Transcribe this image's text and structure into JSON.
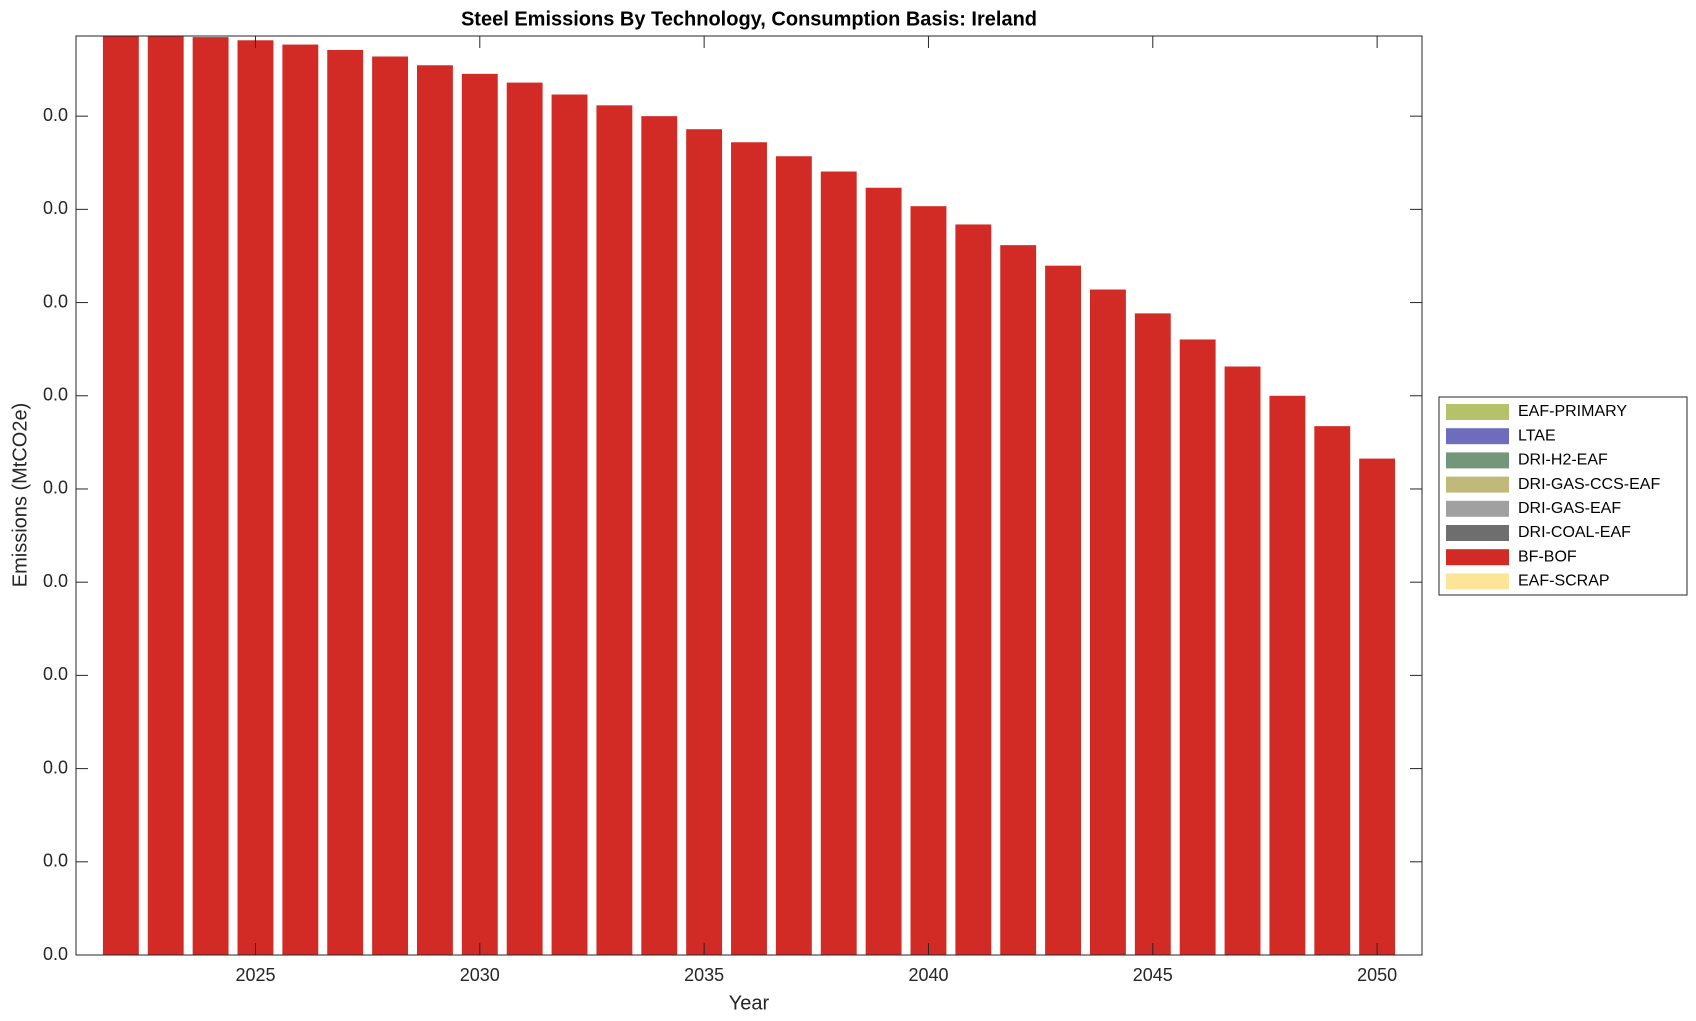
{
  "chart_data": {
    "type": "bar",
    "stacked": true,
    "title": "Steel Emissions By Technology, Consumption Basis: Ireland",
    "xlabel": "Year",
    "ylabel": "Emissions (MtCO2e)",
    "x": [
      2022,
      2023,
      2024,
      2025,
      2026,
      2027,
      2028,
      2029,
      2030,
      2031,
      2032,
      2033,
      2034,
      2035,
      2036,
      2037,
      2038,
      2039,
      2040,
      2041,
      2042,
      2043,
      2044,
      2045,
      2046,
      2047,
      2048,
      2049,
      2050
    ],
    "series": [
      {
        "name": "EAF-PRIMARY",
        "color": "#b5c26a",
        "values": [
          0,
          0,
          0,
          0,
          0,
          0,
          0,
          0,
          0,
          0,
          0,
          0,
          0,
          0,
          0,
          0,
          0,
          0,
          0,
          0,
          0,
          0,
          0,
          0,
          0,
          0,
          0,
          0,
          0
        ]
      },
      {
        "name": "LTAE",
        "color": "#6e6dbd",
        "values": [
          0,
          0,
          0,
          0,
          0,
          0,
          0,
          0,
          0,
          0,
          0,
          0,
          0,
          0,
          0,
          0,
          0,
          0,
          0,
          0,
          0,
          0,
          0,
          0,
          0,
          0,
          0,
          0,
          0
        ]
      },
      {
        "name": "DRI-H2-EAF",
        "color": "#74967a",
        "values": [
          0,
          0,
          0,
          0,
          0,
          0,
          0,
          0,
          0,
          0,
          0,
          0,
          0,
          0,
          0,
          0,
          0,
          0,
          0,
          0,
          0,
          0,
          0,
          0,
          0,
          0,
          0,
          0,
          0
        ]
      },
      {
        "name": "DRI-GAS-CCS-EAF",
        "color": "#bfb97a",
        "values": [
          0,
          0,
          0,
          0,
          0,
          0,
          0,
          0,
          0,
          0,
          0,
          0,
          0,
          0,
          0,
          0,
          0,
          0,
          0,
          0,
          0,
          0,
          0,
          0,
          0,
          0,
          0,
          0,
          0
        ]
      },
      {
        "name": "DRI-GAS-EAF",
        "color": "#a0a0a0",
        "values": [
          0,
          0,
          0,
          0,
          0,
          0,
          0,
          0,
          0,
          0,
          0,
          0,
          0,
          0,
          0,
          0,
          0,
          0,
          0,
          0,
          0,
          0,
          0,
          0,
          0,
          0,
          0,
          0,
          0
        ]
      },
      {
        "name": "DRI-COAL-EAF",
        "color": "#6e6e6e",
        "values": [
          0,
          0,
          0,
          0,
          0,
          0,
          0,
          0,
          0,
          0,
          0,
          0,
          0,
          0,
          0,
          0,
          0,
          0,
          0,
          0,
          0,
          0,
          0,
          0,
          0,
          0,
          0,
          0,
          0
        ]
      },
      {
        "name": "BF-BOF",
        "color": "#d22a25",
        "values": [
          0.0493,
          0.0493,
          0.04924,
          0.04907,
          0.04884,
          0.04855,
          0.0482,
          0.04773,
          0.04727,
          0.0468,
          0.04616,
          0.04558,
          0.045,
          0.0443,
          0.0436,
          0.04285,
          0.04203,
          0.04116,
          0.04017,
          0.03919,
          0.03808,
          0.03698,
          0.0357,
          0.03442,
          0.03302,
          0.03157,
          0.03,
          0.02837,
          0.02663
        ]
      },
      {
        "name": "EAF-SCRAP",
        "color": "#fde597",
        "values": [
          0,
          0,
          0,
          0,
          0,
          0,
          0,
          0,
          0,
          0,
          0,
          0,
          0,
          0,
          0,
          0,
          0,
          0,
          0,
          0,
          0,
          0,
          0,
          0,
          0,
          0,
          0,
          0,
          0
        ]
      }
    ],
    "xlim": [
      2021,
      2051
    ],
    "xticks": [
      2025,
      2030,
      2035,
      2040,
      2045,
      2050
    ],
    "ylim": [
      0,
      0.0493
    ],
    "yticks": [
      {
        "value": 0,
        "label": "0.0"
      },
      {
        "value": 0.005,
        "label": "0.0"
      },
      {
        "value": 0.01,
        "label": "0.0"
      },
      {
        "value": 0.015,
        "label": "0.0"
      },
      {
        "value": 0.02,
        "label": "0.0"
      },
      {
        "value": 0.025,
        "label": "0.0"
      },
      {
        "value": 0.03,
        "label": "0.0"
      },
      {
        "value": 0.035,
        "label": "0.0"
      },
      {
        "value": 0.04,
        "label": "0.0"
      },
      {
        "value": 0.045,
        "label": "0.0"
      }
    ],
    "legend": "right"
  }
}
